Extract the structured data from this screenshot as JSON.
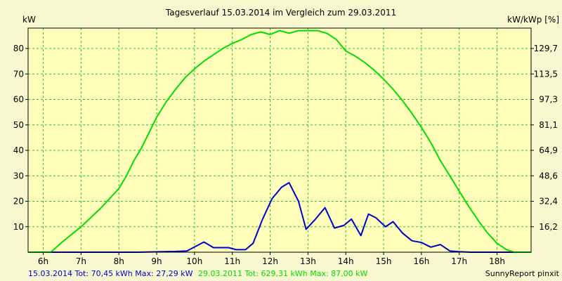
{
  "chart_data": {
    "type": "line",
    "title": "Tagesverlauf 15.03.2014 im Vergleich zum 29.03.2011",
    "ylabel_left": "kW",
    "ylabel_right": "kW/kWp [%]",
    "xlim": [
      5.6,
      18.9
    ],
    "ylim": [
      0,
      88
    ],
    "grid": true,
    "x_ticks": [
      {
        "value": 6,
        "label": "6h"
      },
      {
        "value": 7,
        "label": "7h"
      },
      {
        "value": 8,
        "label": "8h"
      },
      {
        "value": 9,
        "label": "9h"
      },
      {
        "value": 10,
        "label": "10h"
      },
      {
        "value": 11,
        "label": "11h"
      },
      {
        "value": 12,
        "label": "12h"
      },
      {
        "value": 13,
        "label": "13h"
      },
      {
        "value": 14,
        "label": "14h"
      },
      {
        "value": 15,
        "label": "15h"
      },
      {
        "value": 16,
        "label": "16h"
      },
      {
        "value": 17,
        "label": "17h"
      },
      {
        "value": 18,
        "label": "18h"
      }
    ],
    "y_ticks": [
      {
        "value": 10,
        "label": "10"
      },
      {
        "value": 20,
        "label": "20"
      },
      {
        "value": 30,
        "label": "30"
      },
      {
        "value": 40,
        "label": "40"
      },
      {
        "value": 50,
        "label": "50"
      },
      {
        "value": 60,
        "label": "60"
      },
      {
        "value": 70,
        "label": "70"
      },
      {
        "value": 80,
        "label": "80"
      }
    ],
    "y_right_ticks": [
      {
        "value": 10,
        "label": "16,2"
      },
      {
        "value": 20,
        "label": "32,4"
      },
      {
        "value": 30,
        "label": "48,6"
      },
      {
        "value": 40,
        "label": "64,9"
      },
      {
        "value": 50,
        "label": "81,1"
      },
      {
        "value": 60,
        "label": "97,3"
      },
      {
        "value": 70,
        "label": "113,5"
      },
      {
        "value": 80,
        "label": "129,7"
      }
    ],
    "series": [
      {
        "name": "15.03.2014",
        "color": "#0000cc",
        "points": [
          [
            5.6,
            0
          ],
          [
            8.5,
            0
          ],
          [
            9.5,
            0.3
          ],
          [
            9.8,
            0.5
          ],
          [
            10.25,
            4.0
          ],
          [
            10.5,
            1.8
          ],
          [
            10.9,
            1.8
          ],
          [
            11.1,
            1.0
          ],
          [
            11.35,
            1.0
          ],
          [
            11.55,
            3.5
          ],
          [
            11.8,
            13
          ],
          [
            12.05,
            21
          ],
          [
            12.3,
            25.5
          ],
          [
            12.5,
            27.3
          ],
          [
            12.75,
            20
          ],
          [
            12.95,
            9
          ],
          [
            13.2,
            13
          ],
          [
            13.45,
            17.5
          ],
          [
            13.7,
            9.5
          ],
          [
            13.95,
            10.5
          ],
          [
            14.15,
            13
          ],
          [
            14.4,
            6.5
          ],
          [
            14.6,
            15
          ],
          [
            14.8,
            13.5
          ],
          [
            15.05,
            10
          ],
          [
            15.25,
            12
          ],
          [
            15.5,
            7.5
          ],
          [
            15.75,
            4.5
          ],
          [
            16.0,
            3.8
          ],
          [
            16.25,
            2.0
          ],
          [
            16.5,
            3.0
          ],
          [
            16.75,
            0.5
          ],
          [
            17.0,
            0.2
          ],
          [
            17.3,
            0
          ],
          [
            18.9,
            0
          ]
        ]
      },
      {
        "name": "29.03.2011",
        "color": "#00dd00",
        "points": [
          [
            5.6,
            0
          ],
          [
            6.2,
            0
          ],
          [
            6.5,
            4
          ],
          [
            7,
            10
          ],
          [
            7.5,
            17
          ],
          [
            8,
            25
          ],
          [
            8.2,
            30
          ],
          [
            8.4,
            36
          ],
          [
            8.6,
            41
          ],
          [
            8.8,
            47
          ],
          [
            9,
            53
          ],
          [
            9.25,
            59
          ],
          [
            9.5,
            64
          ],
          [
            9.75,
            68.5
          ],
          [
            10,
            72
          ],
          [
            10.25,
            75
          ],
          [
            10.5,
            77.5
          ],
          [
            10.75,
            80
          ],
          [
            11,
            82
          ],
          [
            11.25,
            83.5
          ],
          [
            11.5,
            85.5
          ],
          [
            11.75,
            86.5
          ],
          [
            12,
            85.5
          ],
          [
            12.25,
            87
          ],
          [
            12.5,
            86
          ],
          [
            12.75,
            87
          ],
          [
            13,
            87
          ],
          [
            13.25,
            87
          ],
          [
            13.5,
            86
          ],
          [
            13.75,
            83.5
          ],
          [
            14,
            79
          ],
          [
            14.25,
            77
          ],
          [
            14.5,
            74.5
          ],
          [
            14.75,
            71.5
          ],
          [
            15,
            68
          ],
          [
            15.25,
            64
          ],
          [
            15.5,
            59.5
          ],
          [
            15.75,
            54.5
          ],
          [
            16,
            49
          ],
          [
            16.25,
            43
          ],
          [
            16.5,
            36
          ],
          [
            16.75,
            30
          ],
          [
            17,
            24
          ],
          [
            17.25,
            18
          ],
          [
            17.5,
            12.5
          ],
          [
            17.75,
            7.5
          ],
          [
            18,
            3.5
          ],
          [
            18.25,
            1
          ],
          [
            18.45,
            0
          ],
          [
            18.9,
            0
          ]
        ]
      }
    ],
    "legend": [
      {
        "name": "15.03.2014",
        "text": "15.03.2014 Tot: 70,45 kWh Max: 27,29 kW",
        "color": "#0000cc"
      },
      {
        "name": "29.03.2011",
        "text": "29.03.2011 Tot: 629,31 kWh Max: 87,00 kW",
        "color": "#00dd00"
      }
    ],
    "credit": "SunnyReport pinxit"
  }
}
